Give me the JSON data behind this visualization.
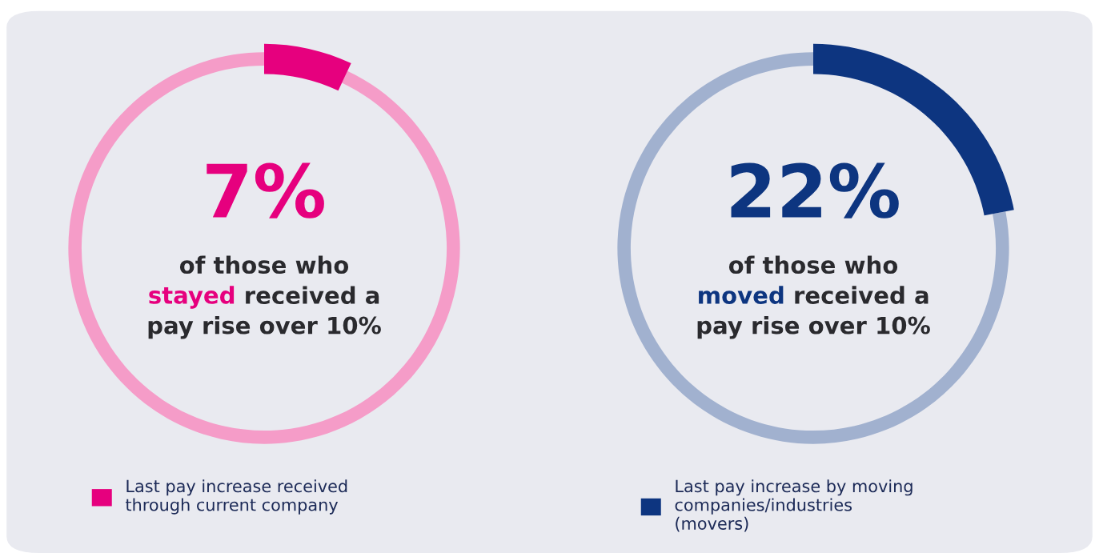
{
  "chart_data": [
    {
      "type": "donut",
      "categories": [
        "Last pay increase received through current company",
        null
      ],
      "values": [
        7,
        93
      ],
      "colors": [
        "#e6007e",
        "#f59cc8"
      ],
      "value_labels": [
        "7%",
        null
      ],
      "legend": "bottom left",
      "annotations": [
        "of those who",
        "stayed received a",
        "pay rise over 10%"
      ]
    },
    {
      "type": "donut",
      "categories": [
        "Last pay increase by moving companies/industries (movers)",
        null
      ],
      "values": [
        22,
        78
      ],
      "colors": [
        "#0d3580",
        "#a1b1cf"
      ],
      "value_labels": [
        "22%",
        null
      ],
      "legend": "bottom left",
      "annotations": [
        "of those who",
        "moved received a",
        "pay rise over 10%"
      ]
    }
  ]
}
